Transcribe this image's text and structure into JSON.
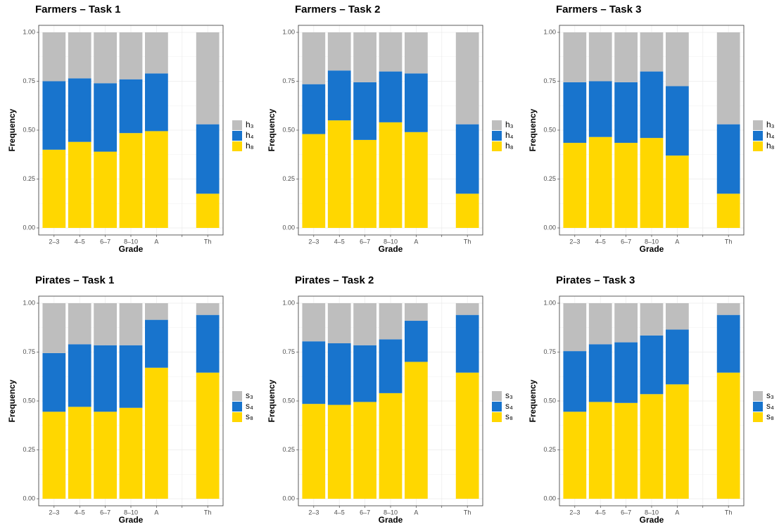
{
  "chart_data": [
    {
      "type": "bar",
      "stacked": true,
      "title": "Farmers – Task 1",
      "xlabel": "Grade",
      "ylabel": "Frequency",
      "categories": [
        "2–3",
        "4–5",
        "6–7",
        "8–10",
        "A",
        null,
        "Th"
      ],
      "series": [
        {
          "name": "h₃",
          "color": "#bebebe",
          "values": [
            0.25,
            0.235,
            0.26,
            0.24,
            0.21,
            0,
            0.47
          ]
        },
        {
          "name": "h₄",
          "color": "#1874cd",
          "values": [
            0.35,
            0.325,
            0.35,
            0.275,
            0.295,
            0,
            0.355
          ]
        },
        {
          "name": "h₈",
          "color": "#ffd700",
          "values": [
            0.4,
            0.44,
            0.39,
            0.485,
            0.495,
            0,
            0.175
          ]
        }
      ],
      "ylim": [
        0,
        1
      ],
      "yticks": [
        {
          "value": 0,
          "label": "0.00"
        },
        {
          "value": 0.25,
          "label": "0.25"
        },
        {
          "value": 0.5,
          "label": "0.50"
        },
        {
          "value": 0.75,
          "label": "0.75"
        },
        {
          "value": 1,
          "label": "1.00"
        }
      ],
      "grid": true
    },
    {
      "type": "bar",
      "stacked": true,
      "title": "Farmers – Task 2",
      "xlabel": "Grade",
      "ylabel": "Frequency",
      "categories": [
        "2–3",
        "4–5",
        "6–7",
        "8–10",
        "A",
        null,
        "Th"
      ],
      "series": [
        {
          "name": "h₃",
          "color": "#bebebe",
          "values": [
            0.265,
            0.195,
            0.255,
            0.2,
            0.21,
            0,
            0.47
          ]
        },
        {
          "name": "h₄",
          "color": "#1874cd",
          "values": [
            0.255,
            0.255,
            0.295,
            0.26,
            0.3,
            0,
            0.355
          ]
        },
        {
          "name": "h₈",
          "color": "#ffd700",
          "values": [
            0.48,
            0.55,
            0.45,
            0.54,
            0.49,
            0,
            0.175
          ]
        }
      ],
      "ylim": [
        0,
        1
      ],
      "yticks": [
        {
          "value": 0,
          "label": "0.00"
        },
        {
          "value": 0.25,
          "label": "0.25"
        },
        {
          "value": 0.5,
          "label": "0.50"
        },
        {
          "value": 0.75,
          "label": "0.75"
        },
        {
          "value": 1,
          "label": "1.00"
        }
      ],
      "grid": true
    },
    {
      "type": "bar",
      "stacked": true,
      "title": "Farmers – Task 3",
      "xlabel": "Grade",
      "ylabel": "Frequency",
      "categories": [
        "2–3",
        "4–5",
        "6–7",
        "8–10",
        "A",
        null,
        "Th"
      ],
      "series": [
        {
          "name": "h₃",
          "color": "#bebebe",
          "values": [
            0.255,
            0.25,
            0.255,
            0.2,
            0.275,
            0,
            0.47
          ]
        },
        {
          "name": "h₄",
          "color": "#1874cd",
          "values": [
            0.31,
            0.285,
            0.31,
            0.34,
            0.355,
            0,
            0.355
          ]
        },
        {
          "name": "h₈",
          "color": "#ffd700",
          "values": [
            0.435,
            0.465,
            0.435,
            0.46,
            0.37,
            0,
            0.175
          ]
        }
      ],
      "ylim": [
        0,
        1
      ],
      "yticks": [
        {
          "value": 0,
          "label": "0.00"
        },
        {
          "value": 0.25,
          "label": "0.25"
        },
        {
          "value": 0.5,
          "label": "0.50"
        },
        {
          "value": 0.75,
          "label": "0.75"
        },
        {
          "value": 1,
          "label": "1.00"
        }
      ],
      "grid": true
    },
    {
      "type": "bar",
      "stacked": true,
      "title": "Pirates – Task 1",
      "xlabel": "Grade",
      "ylabel": "Frequency",
      "categories": [
        "2–3",
        "4–5",
        "6–7",
        "8–10",
        "A",
        null,
        "Th"
      ],
      "series": [
        {
          "name": "s₃",
          "color": "#bebebe",
          "values": [
            0.255,
            0.21,
            0.215,
            0.215,
            0.085,
            0,
            0.06
          ]
        },
        {
          "name": "s₄",
          "color": "#1874cd",
          "values": [
            0.3,
            0.32,
            0.34,
            0.32,
            0.245,
            0,
            0.295
          ]
        },
        {
          "name": "s₈",
          "color": "#ffd700",
          "values": [
            0.445,
            0.47,
            0.445,
            0.465,
            0.67,
            0,
            0.645
          ]
        }
      ],
      "ylim": [
        0,
        1
      ],
      "yticks": [
        {
          "value": 0,
          "label": "0.00"
        },
        {
          "value": 0.25,
          "label": "0.25"
        },
        {
          "value": 0.5,
          "label": "0.50"
        },
        {
          "value": 0.75,
          "label": "0.75"
        },
        {
          "value": 1,
          "label": "1.00"
        }
      ],
      "grid": true
    },
    {
      "type": "bar",
      "stacked": true,
      "title": "Pirates – Task 2",
      "xlabel": "Grade",
      "ylabel": "Frequency",
      "categories": [
        "2–3",
        "4–5",
        "6–7",
        "8–10",
        "A",
        null,
        "Th"
      ],
      "series": [
        {
          "name": "s₃",
          "color": "#bebebe",
          "values": [
            0.195,
            0.205,
            0.215,
            0.185,
            0.09,
            0,
            0.06
          ]
        },
        {
          "name": "s₄",
          "color": "#1874cd",
          "values": [
            0.32,
            0.315,
            0.29,
            0.275,
            0.21,
            0,
            0.295
          ]
        },
        {
          "name": "s₈",
          "color": "#ffd700",
          "values": [
            0.485,
            0.48,
            0.495,
            0.54,
            0.7,
            0,
            0.645
          ]
        }
      ],
      "ylim": [
        0,
        1
      ],
      "yticks": [
        {
          "value": 0,
          "label": "0.00"
        },
        {
          "value": 0.25,
          "label": "0.25"
        },
        {
          "value": 0.5,
          "label": "0.50"
        },
        {
          "value": 0.75,
          "label": "0.75"
        },
        {
          "value": 1,
          "label": "1.00"
        }
      ],
      "grid": true
    },
    {
      "type": "bar",
      "stacked": true,
      "title": "Pirates – Task 3",
      "xlabel": "Grade",
      "ylabel": "Frequency",
      "categories": [
        "2–3",
        "4–5",
        "6–7",
        "8–10",
        "A",
        null,
        "Th"
      ],
      "series": [
        {
          "name": "s₃",
          "color": "#bebebe",
          "values": [
            0.245,
            0.21,
            0.2,
            0.165,
            0.135,
            0,
            0.06
          ]
        },
        {
          "name": "s₄",
          "color": "#1874cd",
          "values": [
            0.31,
            0.295,
            0.31,
            0.3,
            0.28,
            0,
            0.295
          ]
        },
        {
          "name": "s₈",
          "color": "#ffd700",
          "values": [
            0.445,
            0.495,
            0.49,
            0.535,
            0.585,
            0,
            0.645
          ]
        }
      ],
      "ylim": [
        0,
        1
      ],
      "yticks": [
        {
          "value": 0,
          "label": "0.00"
        },
        {
          "value": 0.25,
          "label": "0.25"
        },
        {
          "value": 0.5,
          "label": "0.50"
        },
        {
          "value": 0.75,
          "label": "0.75"
        },
        {
          "value": 1,
          "label": "1.00"
        }
      ],
      "grid": true
    }
  ]
}
